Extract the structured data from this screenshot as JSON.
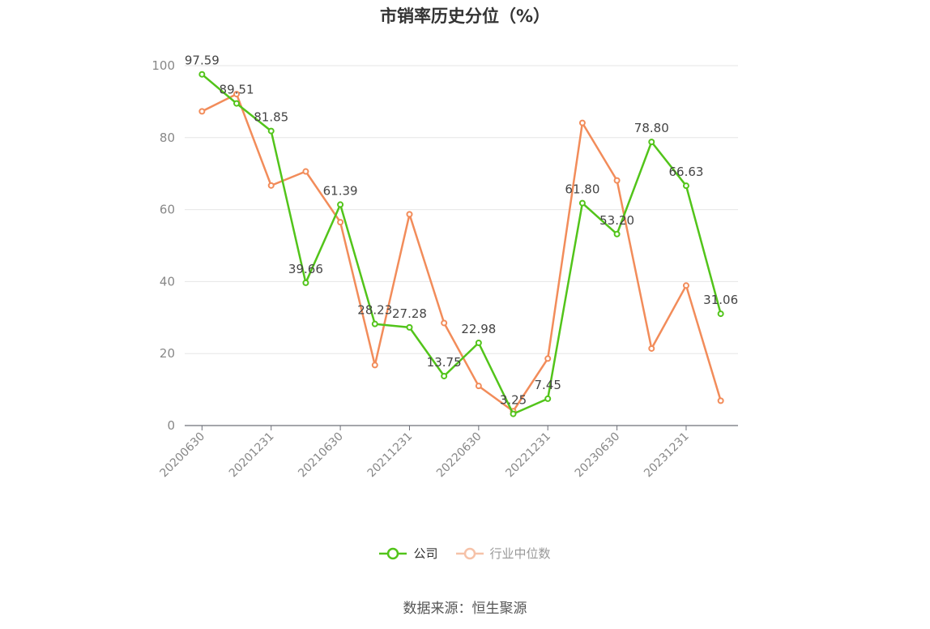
{
  "chart_data": {
    "type": "line",
    "title": "市销率历史分位（%）",
    "x": [
      "20200630",
      "20200930",
      "20201231",
      "20210331",
      "20210630",
      "20210930",
      "20211231",
      "20220331",
      "20220630",
      "20220930",
      "20221231",
      "20230331",
      "20230630",
      "20230930",
      "20231231",
      "20240331"
    ],
    "x_tick_labels": [
      "20200630",
      "20201231",
      "20210630",
      "20211231",
      "20220630",
      "20221231",
      "20230630",
      "20231231"
    ],
    "ylim": [
      0,
      100
    ],
    "y_ticks": [
      0,
      20,
      40,
      60,
      80,
      100
    ],
    "grid": true,
    "legend_position": "bottom",
    "series": [
      {
        "name": "公司",
        "color": "#52c41a",
        "values": [
          97.59,
          89.51,
          81.85,
          39.66,
          61.39,
          28.23,
          27.28,
          13.75,
          22.98,
          3.25,
          7.45,
          61.8,
          53.2,
          78.8,
          66.63,
          31.06
        ],
        "labels": [
          "97.59",
          "89.51",
          "81.85",
          "39.66",
          "61.39",
          "28.23",
          "27.28",
          "13.75",
          "22.98",
          "3.25",
          "7.45",
          "61.80",
          "53.20",
          "78.80",
          "66.63",
          "31.06"
        ]
      },
      {
        "name": "行业中位数",
        "color": "#f28c5a",
        "values": [
          87.3,
          92.1,
          66.7,
          70.6,
          56.5,
          16.8,
          58.7,
          28.5,
          11.0,
          4.0,
          18.6,
          84.1,
          68.1,
          21.4,
          38.9,
          6.9
        ]
      }
    ]
  },
  "legend": {
    "company": "公司",
    "industry": "行业中位数"
  },
  "source": "数据来源：恒生聚源"
}
